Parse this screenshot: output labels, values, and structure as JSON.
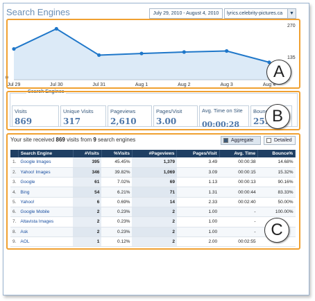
{
  "header": {
    "title": "Search Engines",
    "date_range": "July 29, 2010 - August 4, 2010",
    "site": "lyrics.celebrity-pictures.ca"
  },
  "chart_data": {
    "type": "area",
    "x": [
      "Jul 29",
      "Jul 30",
      "Jul 31",
      "Aug 1",
      "Aug 2",
      "Aug 3",
      "Aug 4"
    ],
    "values": [
      150,
      248,
      120,
      128,
      135,
      140,
      85
    ],
    "ylim": [
      0,
      270
    ],
    "yticks": [
      "270",
      "135",
      "0"
    ],
    "grid": false,
    "colors": {
      "line": "#1f77c9",
      "fill": "#dceaf7"
    }
  },
  "stats": {
    "legend": "Search Engines",
    "items": [
      {
        "label": "Visits",
        "value": "869"
      },
      {
        "label": "Unique Visits",
        "value": "317"
      },
      {
        "label": "Pageviews",
        "value": "2,610"
      },
      {
        "label": "Pages/Visit",
        "value": "3.00"
      },
      {
        "label": "Avg. Time on Site",
        "value": "00:00:28"
      },
      {
        "label": "Bounce",
        "value": "25."
      }
    ]
  },
  "summary": {
    "prefix": "Your site received",
    "visits": "869",
    "middle": "visits from",
    "engines": "9",
    "suffix": "search engines"
  },
  "toggles": {
    "aggregate": "Aggregate",
    "detailed": "Detailed"
  },
  "table": {
    "columns": [
      "Search Engine",
      "#Visits",
      "%Visits",
      "#Pageviews",
      "Pages/Visit",
      "Avg. Time",
      "Bounce%"
    ],
    "rows": [
      [
        "1.",
        "Google Images",
        "395",
        "45.45%",
        "1,379",
        "3.49",
        "00:00:38",
        "14.68%"
      ],
      [
        "2.",
        "Yahoo! Images",
        "346",
        "39.82%",
        "1,069",
        "3.09",
        "00:00:15",
        "15.32%"
      ],
      [
        "3.",
        "Google",
        "61",
        "7.02%",
        "69",
        "1.13",
        "00:00:13",
        "90.16%"
      ],
      [
        "4.",
        "Bing",
        "54",
        "6.21%",
        "71",
        "1.31",
        "00:00:44",
        "83.33%"
      ],
      [
        "5.",
        "Yahoo!",
        "6",
        "0.69%",
        "14",
        "2.33",
        "00:02:40",
        "50.00%"
      ],
      [
        "6.",
        "Google Mobile",
        "2",
        "0.23%",
        "2",
        "1.00",
        "-",
        "100.00%"
      ],
      [
        "7.",
        "Altavista Images",
        "2",
        "0.23%",
        "2",
        "1.00",
        "-",
        ""
      ],
      [
        "8.",
        "Ask",
        "2",
        "0.23%",
        "2",
        "1.00",
        "-",
        ""
      ],
      [
        "9.",
        "AOL",
        "1",
        "0.12%",
        "2",
        "2.00",
        "00:02:55",
        ""
      ]
    ]
  },
  "callouts": {
    "a": "A",
    "b": "B",
    "c": "C"
  }
}
